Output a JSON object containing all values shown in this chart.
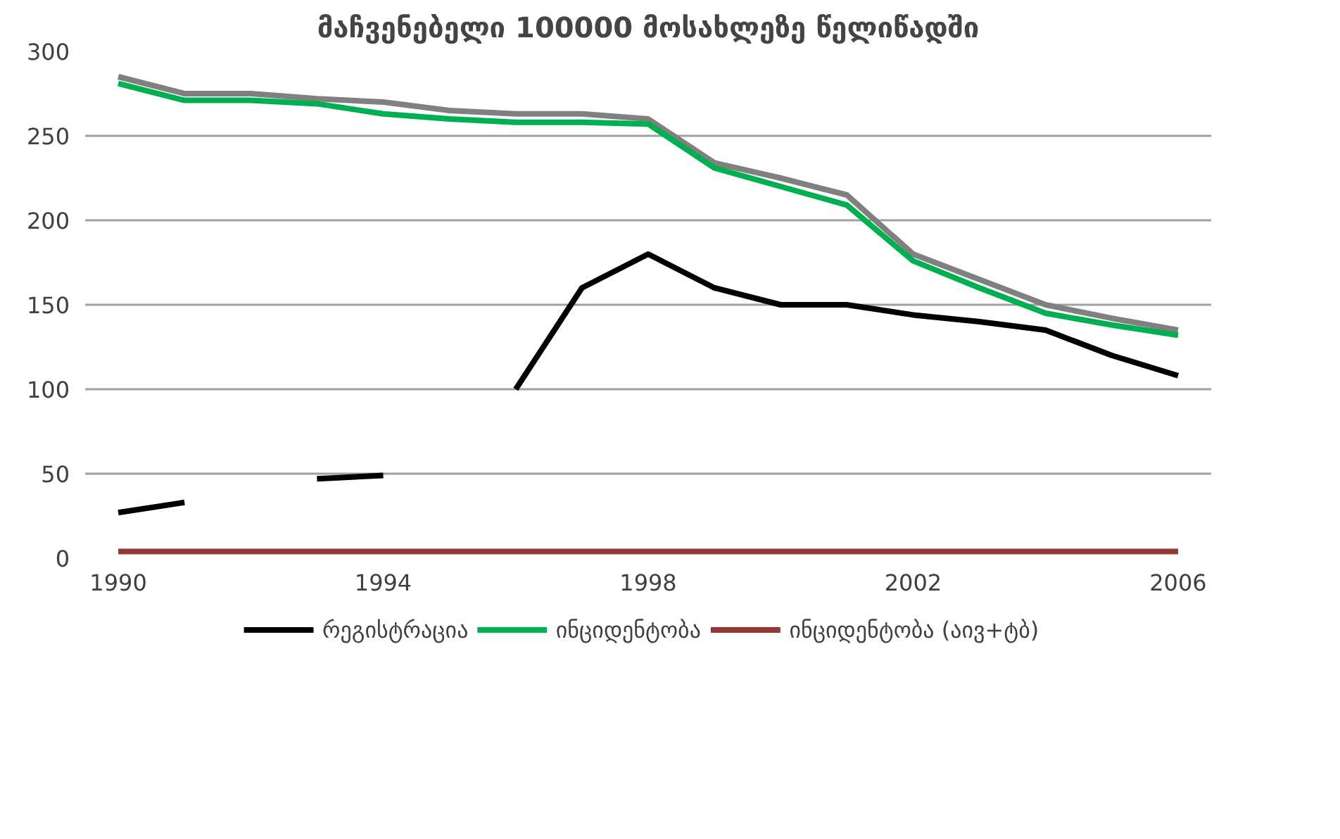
{
  "chart_data": {
    "type": "line",
    "title": "მაჩვენებელი 100000 მოსახლეზე წელიწადში",
    "x": [
      1990,
      1991,
      1992,
      1993,
      1994,
      1995,
      1996,
      1997,
      1998,
      1999,
      2000,
      2001,
      2002,
      2003,
      2004,
      2005,
      2006
    ],
    "series": [
      {
        "color": "#808080",
        "values": [
          285,
          275,
          275,
          272,
          270,
          265,
          263,
          263,
          260,
          234,
          225,
          215,
          180,
          165,
          150,
          142,
          135
        ]
      },
      {
        "name": "რეგისტრაცია",
        "color": "#000000",
        "values": [
          27,
          33,
          null,
          47,
          49,
          null,
          100,
          160,
          180,
          160,
          150,
          150,
          144,
          140,
          135,
          120,
          108
        ]
      },
      {
        "name": "ინციდენტობა",
        "color": "#00b050",
        "values": [
          281,
          271,
          271,
          269,
          263,
          260,
          258,
          258,
          257,
          231,
          220,
          209,
          176,
          160,
          145,
          138,
          132
        ]
      },
      {
        "name": "ინციდენტობა (აივ+ტბ)",
        "color": "#943634",
        "values": [
          4,
          4,
          4,
          4,
          4,
          4,
          4,
          4,
          4,
          4,
          4,
          4,
          4,
          4,
          4,
          4,
          4
        ]
      }
    ],
    "xlim": [
      1989.5,
      2006.5
    ],
    "xticks": [
      1990,
      1994,
      1998,
      2002,
      2006
    ],
    "ylim": [
      0,
      300
    ],
    "yticks": [
      0,
      50,
      100,
      150,
      200,
      250,
      300
    ],
    "grid": "y",
    "legend": "bottom",
    "marker": "none",
    "line_style": "solid"
  }
}
